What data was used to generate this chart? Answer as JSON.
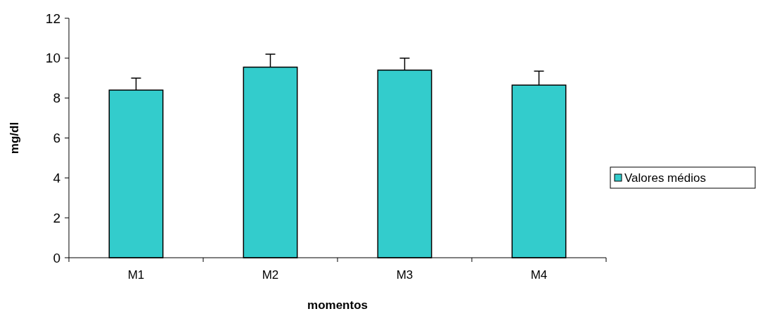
{
  "chart_data": {
    "type": "bar",
    "xlabel": "momentos",
    "ylabel": "mg/dl",
    "categories": [
      "M1",
      "M2",
      "M3",
      "M4"
    ],
    "series": [
      {
        "name": "Valores médios",
        "color": "#33cccc",
        "values": [
          8.4,
          9.55,
          9.4,
          8.65
        ],
        "errors": [
          [
            8.4,
            9.0
          ],
          [
            9.55,
            10.2
          ],
          [
            9.4,
            10.0
          ],
          [
            8.65,
            9.35
          ]
        ]
      }
    ],
    "ylim": [
      0,
      12
    ],
    "yticks": [
      0,
      2,
      4,
      6,
      8,
      10,
      12
    ],
    "grid": false,
    "legend": "right"
  }
}
